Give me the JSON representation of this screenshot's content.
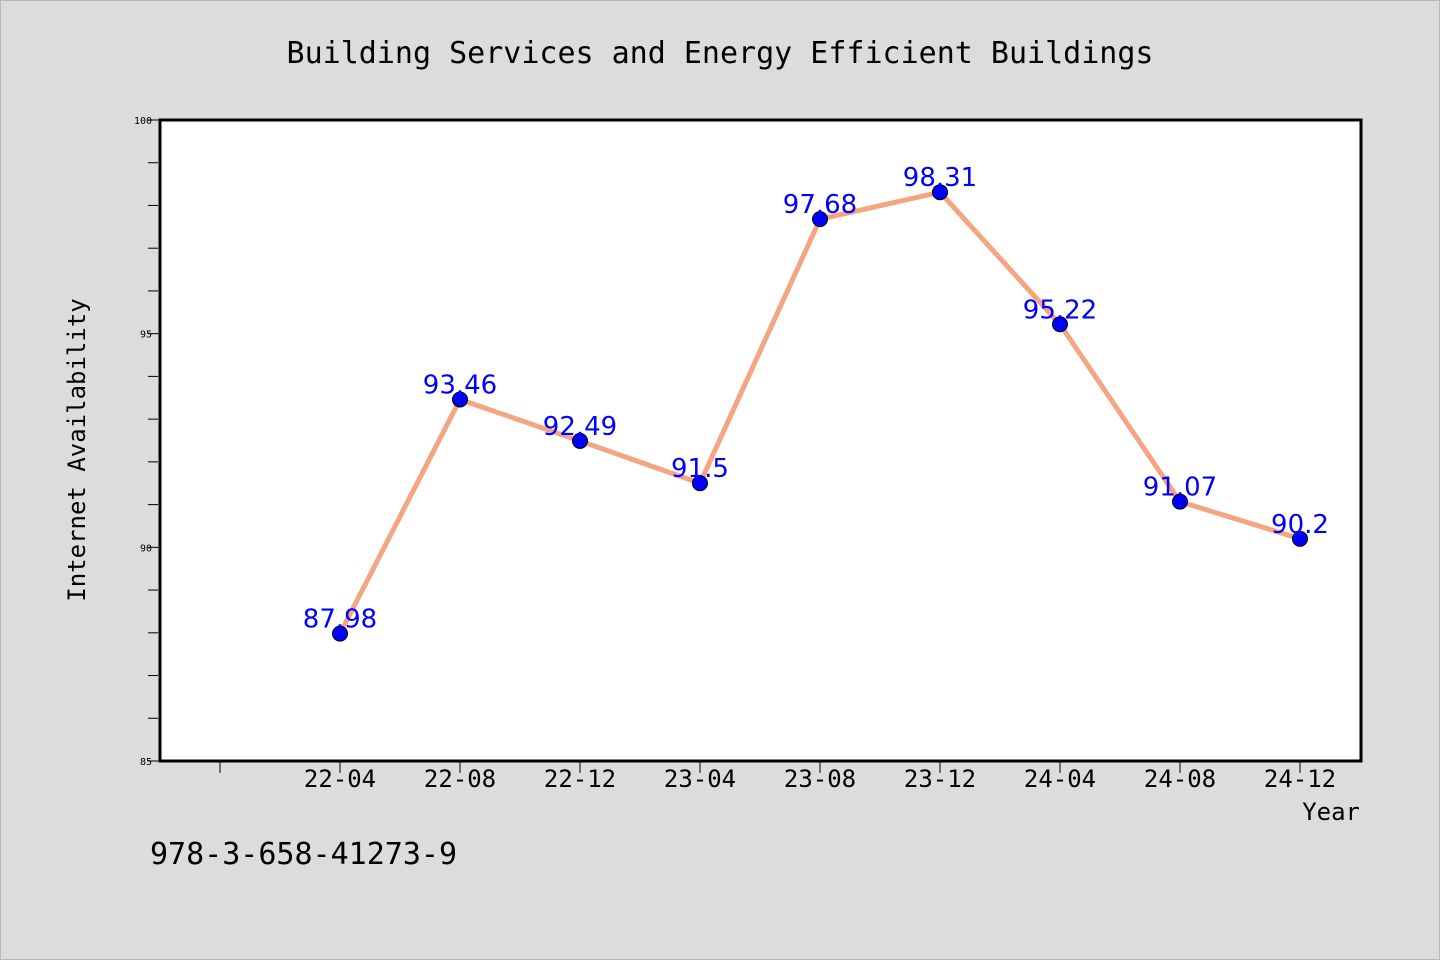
{
  "chart_data": {
    "type": "line",
    "title": "Building Services and Energy Efficient Buildings",
    "xlabel": "Year",
    "ylabel": "Internet Availability",
    "categories": [
      "22-04",
      "22-08",
      "22-12",
      "23-04",
      "23-08",
      "23-12",
      "24-04",
      "24-08",
      "24-12"
    ],
    "series": [
      {
        "values": [
          87.98,
          93.46,
          92.49,
          91.5,
          97.68,
          98.31,
          95.22,
          91.07,
          90.2
        ]
      }
    ],
    "data_labels": [
      "87.98",
      "93.46",
      "92.49",
      "91.5",
      "97.68",
      "98.31",
      "95.22",
      "91.07",
      "90.2"
    ],
    "ylim": [
      85,
      100
    ],
    "y_ticks": [
      "85",
      "90",
      "95",
      "100"
    ],
    "grid": false,
    "colors": {
      "line": "#f4a582",
      "marker": "#0000ff",
      "label": "#0000ff",
      "background": "#dcdcdc",
      "plot": "#ffffff"
    }
  },
  "footer_text": "978-3-658-41273-9"
}
